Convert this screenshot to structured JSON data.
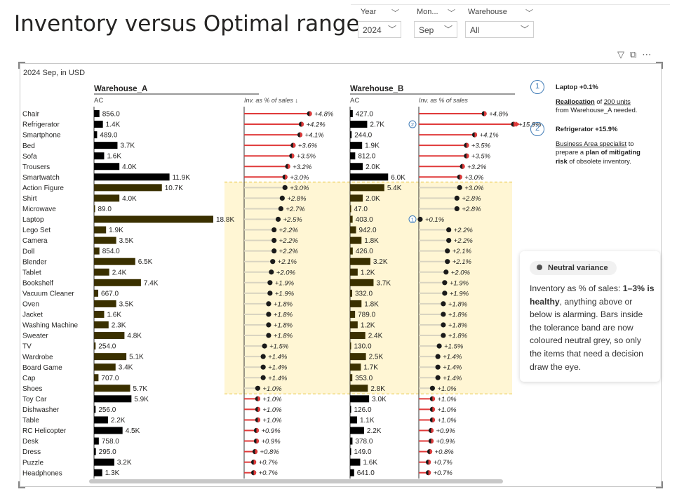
{
  "page": {
    "title": "Inventory versus Optimal range",
    "subtitle": "2024 Sep, in USD"
  },
  "slicers": [
    {
      "label": "Year",
      "value": "2024"
    },
    {
      "label": "Mon...",
      "value": "Sep"
    },
    {
      "label": "Warehouse",
      "value": "All"
    }
  ],
  "icons": [
    "filter-icon",
    "focus-mode-icon",
    "more-options-icon"
  ],
  "colors": {
    "bar_ac": "#000000",
    "bar_in_band": "#3a3000",
    "variance_red": "#e03a3a",
    "variance_neutral": "#d9d4c0",
    "band_fill": "#fff6d4",
    "band_border": "#e6c23a",
    "annotation_blue": "#3f7bb6"
  },
  "chart_data": {
    "type": "bar",
    "panels": [
      "Warehouse_A",
      "Warehouse_B"
    ],
    "ac_header": "AC",
    "pct_header_a": "Inv. as % of sales ↓",
    "pct_header_b": "Inv. as % of sales",
    "categories": [
      "Chair",
      "Refrigerator",
      "Smartphone",
      "Bed",
      "Sofa",
      "Trousers",
      "Smartwatch",
      "Action Figure",
      "Shirt",
      "Microwave",
      "Laptop",
      "Lego Set",
      "Camera",
      "Doll",
      "Blender",
      "Tablet",
      "Bookshelf",
      "Vacuum Cleaner",
      "Oven",
      "Jacket",
      "Washing Machine",
      "Sweater",
      "TV",
      "Wardrobe",
      "Board Game",
      "Cap",
      "Shoes",
      "Toy Car",
      "Dishwasher",
      "Table",
      "RC Helicopter",
      "Desk",
      "Dress",
      "Puzzle",
      "Headphones"
    ],
    "tolerance_band": {
      "from_category": "Action Figure",
      "to_category": "Shoes",
      "range": "1–3%"
    },
    "series": [
      {
        "name": "Warehouse_A",
        "ac_values": [
          856,
          1400,
          489,
          3700,
          1600,
          4000,
          11900,
          10700,
          4000,
          89,
          18800,
          1900,
          3500,
          854,
          6500,
          2400,
          7400,
          667,
          3500,
          1600,
          2300,
          4800,
          254,
          5100,
          3400,
          707,
          5700,
          5900,
          256,
          2200,
          4500,
          758,
          295,
          3200,
          1300
        ],
        "ac_labels": [
          "856.0",
          "1.4K",
          "489.0",
          "3.7K",
          "1.6K",
          "4.0K",
          "11.9K",
          "10.7K",
          "4.0K",
          "89.0",
          "18.8K",
          "1.9K",
          "3.5K",
          "854.0",
          "6.5K",
          "2.4K",
          "7.4K",
          "667.0",
          "3.5K",
          "1.6K",
          "2.3K",
          "4.8K",
          "254.0",
          "5.1K",
          "3.4K",
          "707.0",
          "5.7K",
          "5.9K",
          "256.0",
          "2.2K",
          "4.5K",
          "758.0",
          "295.0",
          "3.2K",
          "1.3K"
        ],
        "pct_values": [
          4.8,
          4.2,
          4.1,
          3.6,
          3.5,
          3.2,
          3.0,
          3.0,
          2.8,
          2.7,
          2.5,
          2.2,
          2.2,
          2.2,
          2.1,
          2.0,
          1.9,
          1.9,
          1.8,
          1.8,
          1.8,
          1.8,
          1.5,
          1.4,
          1.4,
          1.4,
          1.0,
          1.0,
          1.0,
          1.0,
          0.9,
          0.9,
          0.8,
          0.7,
          0.7
        ],
        "pct_labels": [
          "+4.8%",
          "+4.2%",
          "+4.1%",
          "+3.6%",
          "+3.5%",
          "+3.2%",
          "+3.0%",
          "+3.0%",
          "+2.8%",
          "+2.7%",
          "+2.5%",
          "+2.2%",
          "+2.2%",
          "+2.2%",
          "+2.1%",
          "+2.0%",
          "+1.9%",
          "+1.9%",
          "+1.8%",
          "+1.8%",
          "+1.8%",
          "+1.8%",
          "+1.5%",
          "+1.4%",
          "+1.4%",
          "+1.4%",
          "+1.0%",
          "+1.0%",
          "+1.0%",
          "+1.0%",
          "+0.9%",
          "+0.9%",
          "+0.8%",
          "+0.7%",
          "+0.7%"
        ]
      },
      {
        "name": "Warehouse_B",
        "ac_values": [
          427,
          2700,
          244,
          1900,
          812,
          2000,
          6000,
          5400,
          2000,
          47,
          403,
          942,
          1800,
          426,
          3200,
          1200,
          3700,
          332,
          1800,
          789,
          1200,
          2400,
          130,
          2500,
          1700,
          353,
          2800,
          3000,
          126,
          1100,
          2200,
          378,
          149,
          1600,
          641
        ],
        "ac_labels": [
          "427.0",
          "2.7K",
          "244.0",
          "1.9K",
          "812.0",
          "2.0K",
          "6.0K",
          "5.4K",
          "2.0K",
          "47.0",
          "403.0",
          "942.0",
          "1.8K",
          "426.0",
          "3.2K",
          "1.2K",
          "3.7K",
          "332.0",
          "1.8K",
          "789.0",
          "1.2K",
          "2.4K",
          "130.0",
          "2.5K",
          "1.7K",
          "353.0",
          "2.8K",
          "3.0K",
          "126.0",
          "1.1K",
          "2.2K",
          "378.0",
          "149.0",
          "1.6K",
          "641.0"
        ],
        "pct_values": [
          4.8,
          15.9,
          4.1,
          3.5,
          3.5,
          3.2,
          3.0,
          3.0,
          2.8,
          2.8,
          0.1,
          2.2,
          2.2,
          2.1,
          2.1,
          2.0,
          1.9,
          1.9,
          1.8,
          1.8,
          1.8,
          1.8,
          1.5,
          1.4,
          1.4,
          1.4,
          1.0,
          1.0,
          1.0,
          1.0,
          0.9,
          0.9,
          0.8,
          0.7,
          0.7
        ],
        "pct_labels": [
          "+4.8%",
          "+15.9%",
          "+4.1%",
          "+3.5%",
          "+3.5%",
          "+3.2%",
          "+3.0%",
          "+3.0%",
          "+2.8%",
          "+2.8%",
          "+0.1%",
          "+2.2%",
          "+2.2%",
          "+2.1%",
          "+2.1%",
          "+2.0%",
          "+1.9%",
          "+1.9%",
          "+1.8%",
          "+1.8%",
          "+1.8%",
          "+1.8%",
          "+1.5%",
          "+1.4%",
          "+1.4%",
          "+1.4%",
          "+1.0%",
          "+1.0%",
          "+1.0%",
          "+1.0%",
          "+0.9%",
          "+0.9%",
          "+0.8%",
          "+0.7%",
          "+0.7%"
        ],
        "markers": [
          {
            "category": "Refrigerator",
            "label": "2"
          },
          {
            "category": "Laptop",
            "label": "1"
          }
        ]
      }
    ]
  },
  "notes": [
    {
      "number": "1",
      "title": "Laptop +0.1%",
      "line1_pre": "",
      "line1_link": "Reallocation",
      "line1_mid": " of ",
      "line1_link2": "200 units",
      "line2": "from Warehouse_A needed."
    },
    {
      "number": "2",
      "title": "Refrigerator +15.9%",
      "line1_link": "Business Area specialist",
      "line1_post": " to",
      "line2_pre": "prepare a ",
      "line2_bold": "plan of mitigating",
      "line3_bold": "risk",
      "line3_post": " of obsolete inventory."
    }
  ],
  "legend": {
    "pill": "Neutral variance",
    "body_pre": "Inventory as % of sales: ",
    "body_bold": "1–3% is healthy",
    "body_post": ", anything above or below is alarming. Bars inside the tolerance band are now coloured neutral grey, so only the items that need a decision draw the eye."
  }
}
